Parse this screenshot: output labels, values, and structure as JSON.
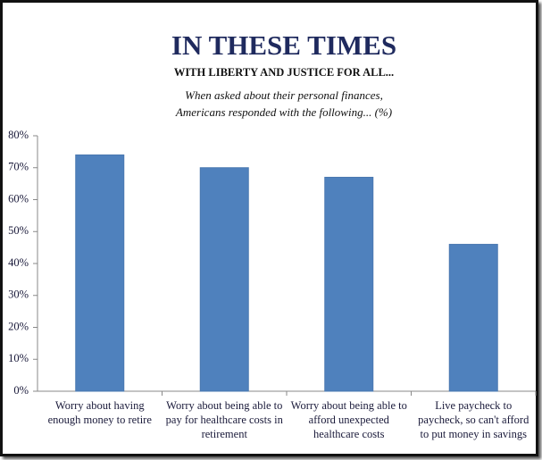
{
  "chart_data": {
    "type": "bar",
    "title": "IN THESE TIMES",
    "subtitle": "WITH LIBERTY AND JUSTICE FOR ALL...",
    "annotation": [
      "When asked about their personal finances,",
      "Americans responded with the following... (%)"
    ],
    "categories": [
      "Worry about having enough money to retire",
      "Worry about being able to pay for healthcare costs in retirement",
      "Worry about being able to afford unexpected healthcare costs",
      "Live paycheck to paycheck, so can't afford to put money in savings"
    ],
    "values": [
      74,
      70,
      67,
      46
    ],
    "color": "#4f81bd",
    "ylim": [
      0,
      80
    ],
    "yticks": [
      {
        "value": 0,
        "label": "0%"
      },
      {
        "value": 10,
        "label": "10%"
      },
      {
        "value": 20,
        "label": "20%"
      },
      {
        "value": 30,
        "label": "30%"
      },
      {
        "value": 40,
        "label": "40%"
      },
      {
        "value": 50,
        "label": "50%"
      },
      {
        "value": 60,
        "label": "60%"
      },
      {
        "value": 70,
        "label": "70%"
      },
      {
        "value": 80,
        "label": "80%"
      }
    ],
    "grid": false
  }
}
